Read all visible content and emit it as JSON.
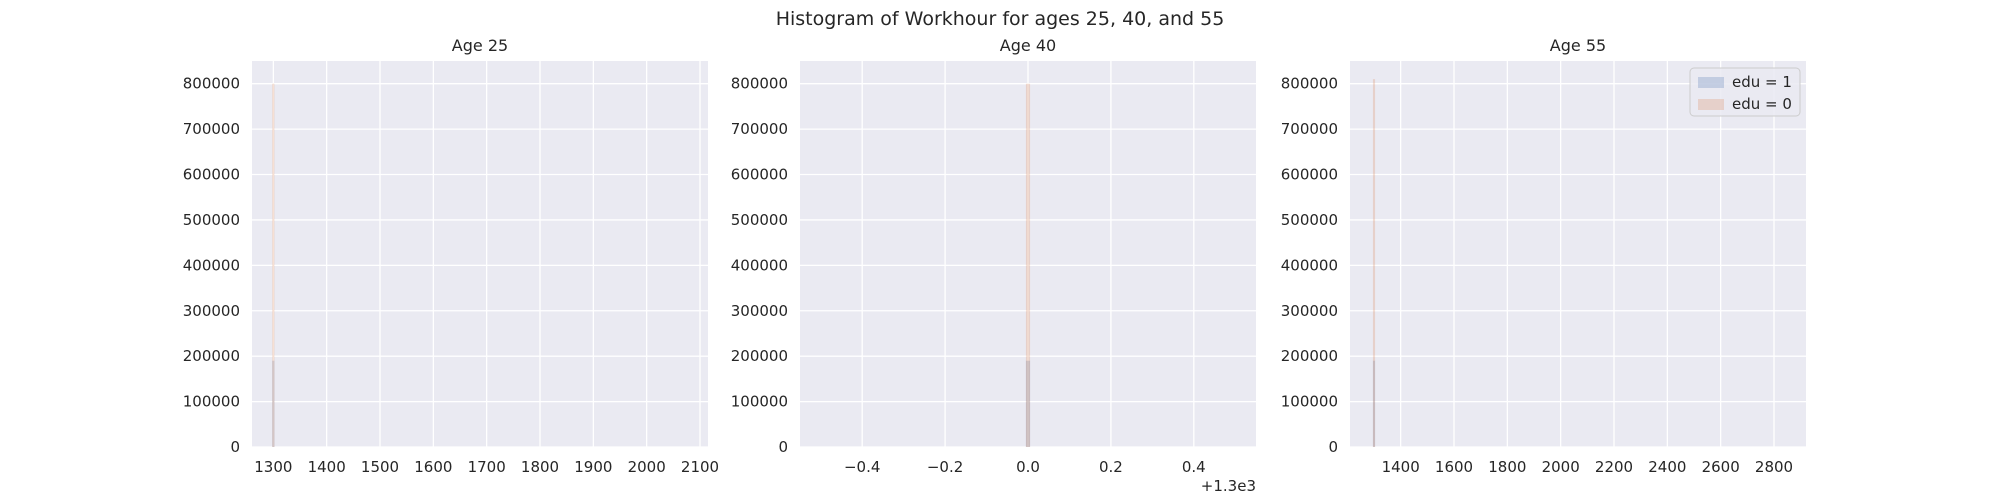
{
  "figure": {
    "title": "Histogram of Workhour for ages 25, 40, and 55"
  },
  "colors": {
    "plot_background": "#eaeaf2",
    "grid": "#ffffff",
    "edu_1": "#4c72b0",
    "edu_0": "#dd8452"
  },
  "legend": {
    "placement": "upper right of Age 55 panel",
    "entries": [
      "edu = 1",
      "edu = 0"
    ]
  },
  "chart_data": [
    {
      "type": "histogram",
      "title": "Age 25",
      "xlim": [
        1260,
        2115
      ],
      "ylim": [
        0,
        850000
      ],
      "x_ticks": [
        1300,
        1400,
        1500,
        1600,
        1700,
        1800,
        1900,
        2000,
        2100
      ],
      "x_tick_labels": [
        "1300",
        "1400",
        "1500",
        "1600",
        "1700",
        "1800",
        "1900",
        "2000",
        "2100"
      ],
      "y_ticks": [
        0,
        100000,
        200000,
        300000,
        400000,
        500000,
        600000,
        700000,
        800000
      ],
      "y_tick_labels": [
        "0",
        "100000",
        "200000",
        "300000",
        "400000",
        "500000",
        "600000",
        "700000",
        "800000"
      ],
      "x_offset_label": "",
      "grid": true,
      "series": [
        {
          "name": "edu = 1",
          "bins": [
            {
              "x0": 1298,
              "x1": 1302,
              "count": 190000
            }
          ]
        },
        {
          "name": "edu = 0",
          "bins": [
            {
              "x0": 1298,
              "x1": 1302,
              "count": 800000
            }
          ]
        }
      ]
    },
    {
      "type": "histogram",
      "title": "Age 40",
      "xlim": [
        -0.55,
        0.55
      ],
      "ylim": [
        0,
        850000
      ],
      "x_ticks": [
        -0.4,
        -0.2,
        0.0,
        0.2,
        0.4
      ],
      "x_tick_labels": [
        "−0.4",
        "−0.2",
        "0.0",
        "0.2",
        "0.4"
      ],
      "y_ticks": [
        0,
        100000,
        200000,
        300000,
        400000,
        500000,
        600000,
        700000,
        800000
      ],
      "y_tick_labels": [
        "0",
        "100000",
        "200000",
        "300000",
        "400000",
        "500000",
        "600000",
        "700000",
        "800000"
      ],
      "x_offset_label": "+1.3e3",
      "grid": true,
      "series": [
        {
          "name": "edu = 1",
          "bins": [
            {
              "x0": -0.005,
              "x1": 0.005,
              "count": 190000
            }
          ]
        },
        {
          "name": "edu = 0",
          "bins": [
            {
              "x0": -0.005,
              "x1": 0.005,
              "count": 800000
            }
          ]
        }
      ]
    },
    {
      "type": "histogram",
      "title": "Age 55",
      "xlim": [
        1210,
        2920
      ],
      "ylim": [
        0,
        850000
      ],
      "x_ticks": [
        1400,
        1600,
        1800,
        2000,
        2200,
        2400,
        2600,
        2800
      ],
      "x_tick_labels": [
        "1400",
        "1600",
        "1800",
        "2000",
        "2200",
        "2400",
        "2600",
        "2800"
      ],
      "y_ticks": [
        0,
        100000,
        200000,
        300000,
        400000,
        500000,
        600000,
        700000,
        800000
      ],
      "y_tick_labels": [
        "0",
        "100000",
        "200000",
        "300000",
        "400000",
        "500000",
        "600000",
        "700000",
        "800000"
      ],
      "x_offset_label": "",
      "grid": true,
      "series": [
        {
          "name": "edu = 1",
          "bins": [
            {
              "x0": 1296,
              "x1": 1304,
              "count": 190000
            }
          ]
        },
        {
          "name": "edu = 0",
          "bins": [
            {
              "x0": 1296,
              "x1": 1304,
              "count": 810000
            }
          ]
        }
      ]
    }
  ]
}
